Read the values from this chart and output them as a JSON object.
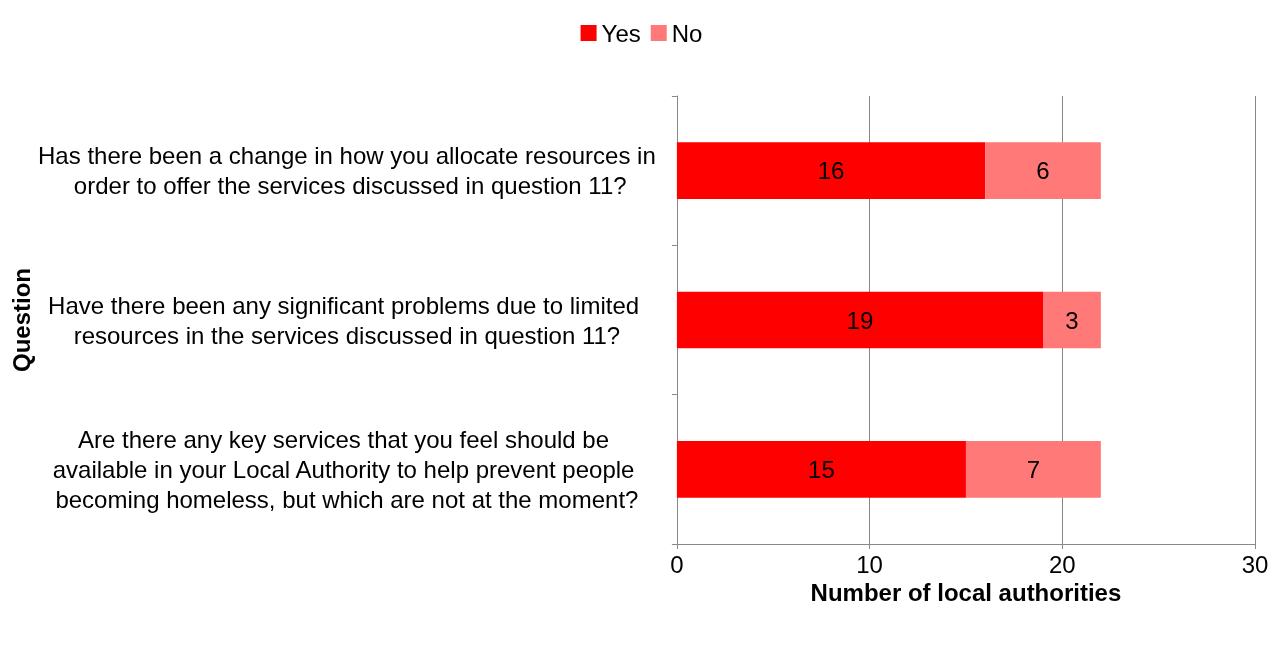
{
  "chart_data": {
    "type": "bar",
    "orientation": "horizontal",
    "stacked": true,
    "data_labels": true,
    "legend": "top",
    "grid": "x",
    "xlabel": "Number of local authorities",
    "ylabel": "Question",
    "categories": [
      "Has there been a change in how you allocate resources in order to offer the services discussed in question 11?",
      "Have there been any significant problems due to limited resources in the services discussed in question 11?",
      "Are there any key services that you feel should be available in your Local Authority to help prevent people becoming homeless, but which are not at the moment?"
    ],
    "series": [
      {
        "name": "Yes",
        "color": "#ff0000",
        "values": [
          16,
          19,
          15
        ]
      },
      {
        "name": "No",
        "color": "#ff7979",
        "values": [
          6,
          3,
          7
        ]
      }
    ],
    "xlim": [
      0,
      30
    ],
    "xticks": [
      0,
      10,
      20,
      30
    ]
  }
}
